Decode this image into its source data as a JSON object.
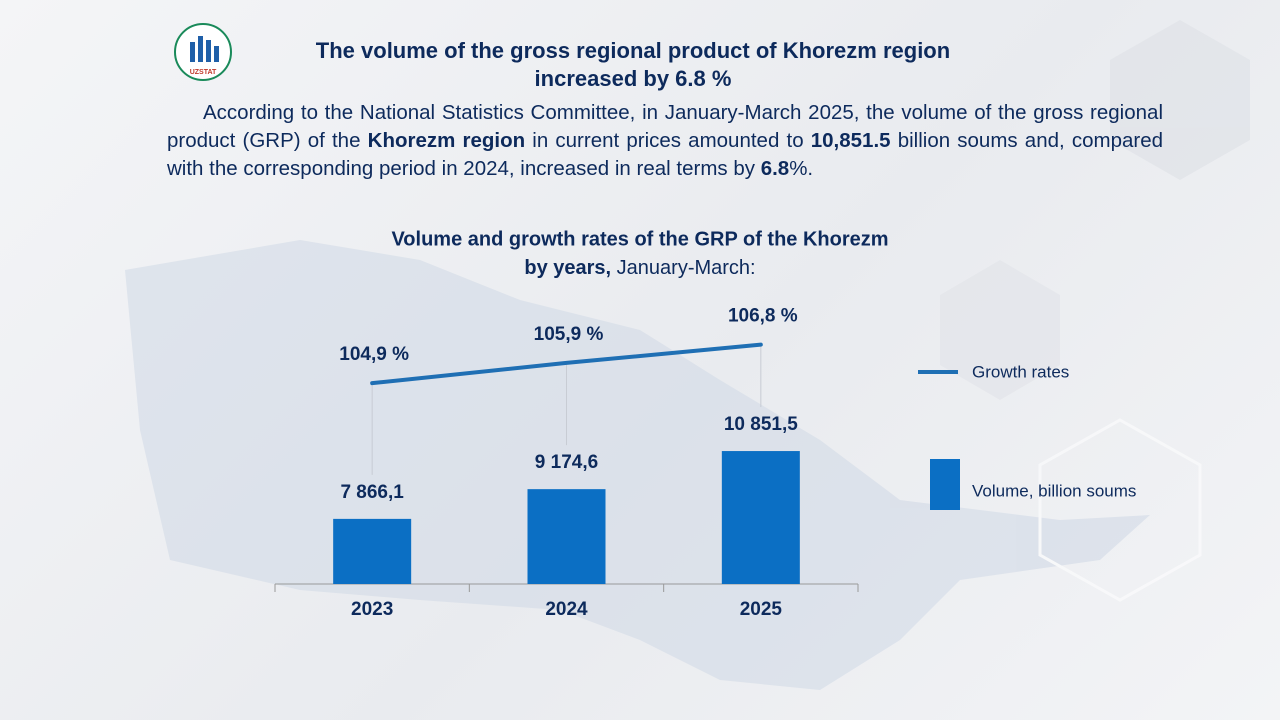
{
  "header": {
    "logo_text": "UZSTAT",
    "title": [
      "The volume of the gross regional product of Khorezm region",
      "increased by 6.8 %"
    ]
  },
  "paragraph": [
    "According to the National Statistics Committee, in January-March 2025, the volume of the gross regional product (GRP) of the ",
    "Khorezm region",
    " in current prices amounted to ",
    "10,851.5",
    " billion soums and, compared with the corresponding period in 2024, increased in real terms by ",
    "6.8",
    "%."
  ],
  "chart_data": {
    "type": "bar",
    "title": "Volume and growth rates of the GRP of the Khorezm",
    "subtitle": [
      "by years,",
      "January-March:"
    ],
    "categories": [
      "2023",
      "2024",
      "2025"
    ],
    "series": [
      {
        "name": "Volume, billion soums",
        "type": "bar",
        "color": "#0b6fc4",
        "values": [
          7866.1,
          9174.6,
          10851.5
        ],
        "value_labels": [
          "7 866,1",
          "9 174,6",
          "10 851,5"
        ]
      },
      {
        "name": "Growth rates",
        "type": "line",
        "axis": "y2",
        "color": "#1f6fb4",
        "values": [
          104.9,
          105.9,
          106.8
        ],
        "value_labels": [
          "104,9 %",
          "105,9 %",
          "106,8 %"
        ]
      }
    ],
    "ylim": [
      5000,
      17500
    ],
    "y2lim": [
      95,
      109
    ]
  }
}
